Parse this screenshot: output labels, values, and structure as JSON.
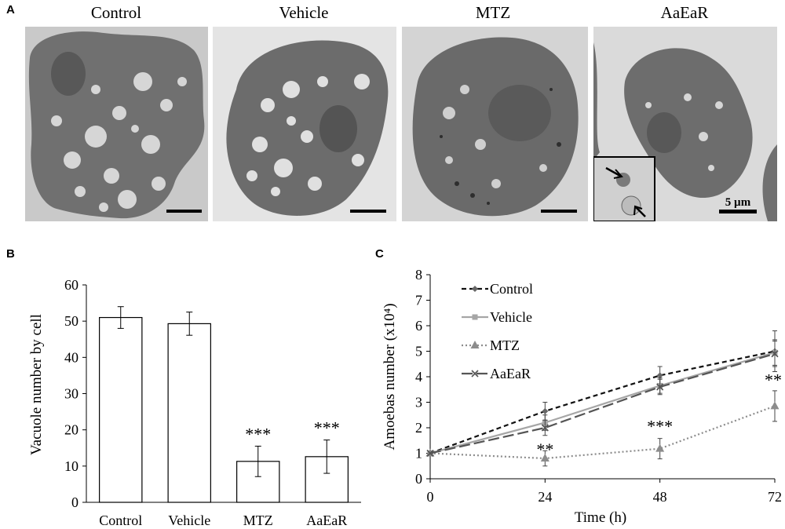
{
  "panel_a": {
    "letter": "A",
    "titles": [
      "Control",
      "Vehicle",
      "MTZ",
      "AaEaR"
    ],
    "scale_label": "5 µm"
  },
  "colors": {
    "control_line": "#111111",
    "vehicle_line": "#a6a6a6",
    "mtz_line": "#8c8c8c",
    "aaear_line": "#555555",
    "micrograph_bg": "#c8c8c8",
    "cell": "#6e6e6e"
  },
  "chart_data": [
    {
      "panel": "B",
      "type": "bar",
      "categories": [
        "Control",
        "Vehicle",
        "MTZ",
        "AaEaR"
      ],
      "values": [
        51,
        49.3,
        11.3,
        12.6
      ],
      "errors": [
        3,
        3.2,
        4.2,
        4.6
      ],
      "annotations": [
        "",
        "",
        "***",
        "***"
      ],
      "ylabel": "Vacuole number by cell",
      "ylim": [
        0,
        60
      ],
      "yticks": [
        0,
        10,
        20,
        30,
        40,
        50,
        60
      ]
    },
    {
      "panel": "C",
      "type": "line",
      "x": [
        0,
        24,
        48,
        72
      ],
      "xlabel": "Time (h)",
      "ylabel": "Amoebas number (x10⁴)",
      "ylim": [
        0,
        8
      ],
      "yticks": [
        0,
        1,
        2,
        3,
        4,
        5,
        6,
        7,
        8
      ],
      "legend_position": "top-left",
      "series": [
        {
          "name": "Control",
          "values": [
            1,
            2.65,
            4.05,
            5.0
          ],
          "errors": [
            0,
            0.35,
            0.35,
            0.8
          ]
        },
        {
          "name": "Vehicle",
          "values": [
            1,
            2.2,
            3.65,
            4.95
          ],
          "errors": [
            0,
            0.3,
            0.3,
            0.5
          ]
        },
        {
          "name": "MTZ",
          "values": [
            1,
            0.8,
            1.18,
            2.85
          ],
          "errors": [
            0,
            0.3,
            0.4,
            0.6
          ]
        },
        {
          "name": "AaEaR",
          "values": [
            1,
            2.0,
            3.6,
            4.9
          ],
          "errors": [
            0,
            0.3,
            0.3,
            0.5
          ]
        }
      ],
      "annotations": [
        {
          "x": 24,
          "text": "**"
        },
        {
          "x": 48,
          "text": "***"
        },
        {
          "x": 72,
          "text": "**"
        }
      ]
    }
  ]
}
